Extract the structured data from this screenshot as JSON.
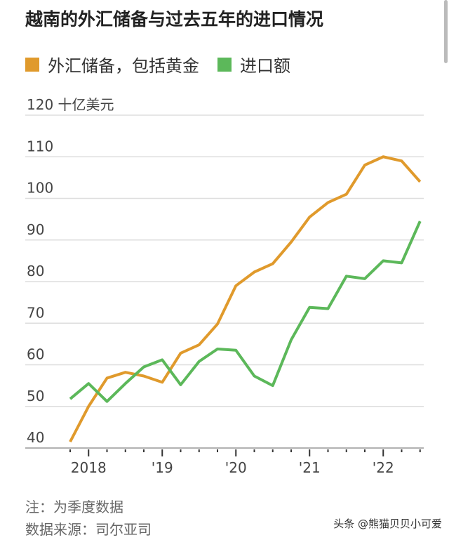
{
  "chart_data": {
    "type": "line",
    "title": "越南的外汇储备与过去五年的进口情况",
    "ylabel": "十亿美元",
    "ylim": [
      40,
      120
    ],
    "yticks": [
      40,
      50,
      60,
      70,
      80,
      90,
      100,
      110,
      120
    ],
    "ytick_labels": [
      "40",
      "50",
      "60",
      "70",
      "80",
      "90",
      "100",
      "110",
      "120 十亿美元"
    ],
    "x": [
      "2017Q4",
      "2018Q1",
      "2018Q2",
      "2018Q3",
      "2018Q4",
      "2019Q1",
      "2019Q2",
      "2019Q3",
      "2019Q4",
      "2020Q1",
      "2020Q2",
      "2020Q3",
      "2020Q4",
      "2021Q1",
      "2021Q2",
      "2021Q3",
      "2021Q4",
      "2022Q1",
      "2022Q2",
      "2022Q3"
    ],
    "xtick_labels": [
      "2018",
      "'19",
      "'20",
      "'21",
      "'22"
    ],
    "grid": true,
    "legend": "top",
    "series": [
      {
        "name": "外汇储备，包括黄金",
        "color": "#e09a2c",
        "values": [
          41.5,
          50,
          56.8,
          58.2,
          57.3,
          55.8,
          62.8,
          64.8,
          69.8,
          79,
          82.3,
          84.3,
          89.5,
          95.5,
          99,
          101,
          108,
          110,
          109,
          104
        ]
      },
      {
        "name": "进口额",
        "color": "#5cb85a",
        "values": [
          51.8,
          55.5,
          51.2,
          55.5,
          59.5,
          61.2,
          55.2,
          60.8,
          63.8,
          63.5,
          57.3,
          55,
          66,
          73.8,
          73.5,
          81.3,
          80.7,
          85,
          84.5,
          94.5
        ]
      }
    ]
  },
  "notes": {
    "note": "注：为季度数据",
    "source": "数据来源：司尔亚司"
  },
  "watermark": "头条 @熊猫贝贝小可爱"
}
